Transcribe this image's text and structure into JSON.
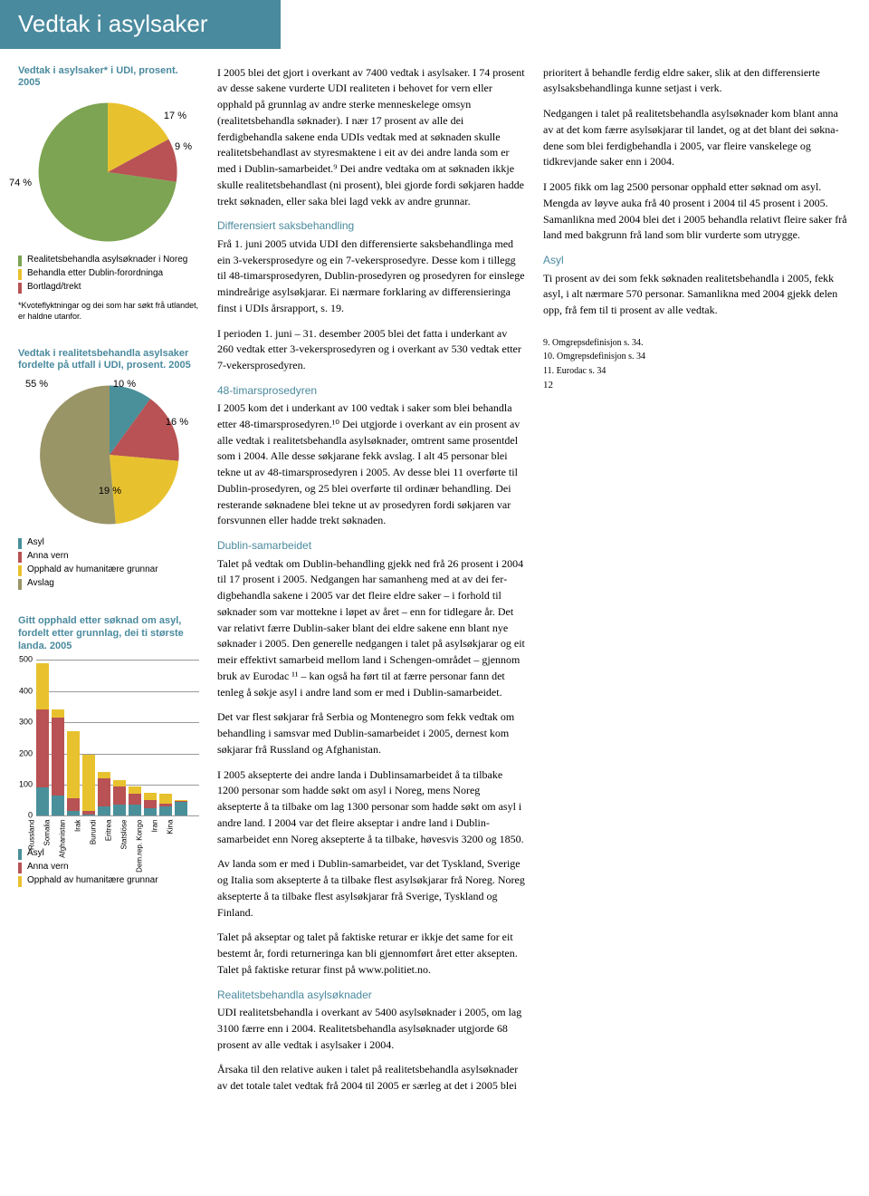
{
  "header": {
    "title": "Vedtak i asylsaker"
  },
  "chart1": {
    "title": "Vedtak i asylsaker* i UDI, prosent. 2005",
    "labels": {
      "p74": "74 %",
      "p17": "17 %",
      "p9": "9 %"
    },
    "colors": {
      "green": "#7da452",
      "yellow": "#e8c22e",
      "red": "#b85254"
    },
    "legend": [
      {
        "color": "#7da452",
        "text": "Realitetsbehandla asylsøknader i Noreg"
      },
      {
        "color": "#e8c22e",
        "text": "Behandla etter Dublin-forordninga"
      },
      {
        "color": "#b85254",
        "text": "Bortlagd/trekt"
      }
    ],
    "footnote": "*Kvoteflyktningar og dei som har søkt frå utlandet, er haldne utanfor."
  },
  "chart2": {
    "title": "Vedtak i realitetsbehandla asylsaker fordelte på utfall i UDI, prosent. 2005",
    "labels": {
      "p55": "55 %",
      "p10": "10 %",
      "p16": "16 %",
      "p19": "19 %"
    },
    "colors": {
      "teal": "#49909a",
      "red": "#b85254",
      "yellow": "#e8c22e",
      "olive": "#9a9567"
    },
    "legend": [
      {
        "color": "#49909a",
        "text": "Asyl"
      },
      {
        "color": "#b85254",
        "text": "Anna vern"
      },
      {
        "color": "#e8c22e",
        "text": "Opphald av humanitære grunnar"
      },
      {
        "color": "#9a9567",
        "text": "Avslag"
      }
    ]
  },
  "chart3": {
    "title": "Gitt opphald etter søknad om asyl, fordelt etter grunnlag, dei ti største landa. 2005",
    "ymax": 500,
    "ytick": 100,
    "yticks": [
      "0",
      "100",
      "200",
      "300",
      "400",
      "500"
    ],
    "colors": {
      "asyl": "#49909a",
      "anna": "#b85254",
      "human": "#e8c22e"
    },
    "bars": [
      {
        "label": "Russland",
        "asyl": 90,
        "anna": 250,
        "human": 150
      },
      {
        "label": "Somalia",
        "asyl": 65,
        "anna": 250,
        "human": 25
      },
      {
        "label": "Afghanistan",
        "asyl": 15,
        "anna": 40,
        "human": 215
      },
      {
        "label": "Irak",
        "asyl": 5,
        "anna": 10,
        "human": 180
      },
      {
        "label": "Burundi",
        "asyl": 30,
        "anna": 90,
        "human": 20
      },
      {
        "label": "Eritrea",
        "asyl": 35,
        "anna": 60,
        "human": 20
      },
      {
        "label": "Statslöse",
        "asyl": 35,
        "anna": 35,
        "human": 25
      },
      {
        "label": "Dem.rep. Kongo",
        "asyl": 25,
        "anna": 25,
        "human": 25
      },
      {
        "label": "Iran",
        "asyl": 30,
        "anna": 10,
        "human": 30
      },
      {
        "label": "Kina",
        "asyl": 45,
        "anna": 2,
        "human": 3
      }
    ],
    "legend": [
      {
        "color": "#49909a",
        "text": "Asyl"
      },
      {
        "color": "#b85254",
        "text": "Anna vern"
      },
      {
        "color": "#e8c22e",
        "text": "Opphald av humanitære grunnar"
      }
    ]
  },
  "body": {
    "p1": "I 2005 blei det gjort i overkant av 7400 vedtak i asylsaker. I 74 prosent av desse sakene vurderte UDI realiteten i behovet for vern eller opphald på grunnlag av andre sterke menneskelege omsyn (realitetsbehandla søknader). I nær 17 prosent av alle dei ferdigbehandla sakene enda UDIs vedtak med at søknaden skulle realitets­behandlast av styresmaktene i eit av dei andre landa som er med i Dublin-samarbeidet.⁹ Dei andre vedtaka om at søknaden ikkje skulle realitetsbehandlast (ni prosent), blei gjorde fordi søkjaren hadde trekt søknaden, eller saka blei lagd vekk av andre grunnar.",
    "h1": "Differensiert saksbehandling",
    "p2": "Frå 1. juni 2005 utvida UDI den differensierte saksbehandlinga med ein 3-vekersprosedyre og ein 7-vekersprosedyre. Desse kom i tillegg til 48-timarsprosedyren, Dublin-prosedyren og prosedyren for einslege mindreårige asyl­søkjarar. Ei nærmare forklaring av differensie­ringa finst i UDIs årsrapport, s. 19.",
    "p3": "I perioden 1. juni – 31. desember 2005 blei det fatta i underkant av 260 vedtak etter 3-vekers­prosedyren og i overkant av 530 vedtak etter 7-vekersprosedyren.",
    "h2": "48-timarsprosedyren",
    "p4": "I 2005 kom det i underkant av 100 vedtak i saker som blei behandla etter 48-timarsprose­dyren.¹⁰ Dei utgjorde i overkant av ein prosent av alle vedtak i realitetsbehandla asylsøknader, omtrent same prosentdel som i 2004. Alle desse søkjarane fekk avslag. I alt 45 personar blei tekne ut av 48-timarsprosedyren i 2005. Av desse blei 11 overførte til Dublin-prose­dyren, og 25 blei overførte til ordinær behand­ling. Dei resterande søknadene blei tekne ut av prosedyren fordi søkjaren var forsvunnen eller hadde trekt søknaden.",
    "h3": "Dublin-samarbeidet",
    "p5": "Talet på vedtak om Dublin-behandling gjekk ned frå 26 prosent i 2004 til 17 prosent i 2005. Nedgangen har samanheng med at av dei fer­digbehandla sakene i 2005 var det fleire eldre saker – i forhold til søknader som var mot­tekne i løpet av året – enn for tidlegare år. Det var relativt færre Dublin-saker blant dei eldre sakene enn blant nye søknader i 2005. Den generelle nedgangen i talet på asylsøkjarar og eit meir effektivt samarbeid mellom land i Schengen-området – gjennom bruk av Euro­dac ¹¹ – kan også ha ført til at færre personar fann det tenleg å søkje asyl i andre land som er med i Dublin-samarbeidet.",
    "p6": "Det var flest søkjarar frå Serbia og Montenegro som fekk vedtak om behandling i samsvar med Dublin-samarbeidet i 2005, dernest kom søkjarar frå Russland og Afghanistan.",
    "p7": "I 2005 aksepterte dei andre landa i Dublin­samarbeidet å ta tilbake 1200 personar som hadde søkt om asyl i Noreg, mens Noreg aksepterte å ta tilbake om lag 1300 personar som hadde søkt om asyl i andre land. I 2004 var det fleire akseptar i andre land i Dublin­samarbeidet enn Noreg aksepterte å ta tilbake, høvesvis 3200 og 1850.",
    "p8": "Av landa som er med i Dublin-samarbeidet, var det Tyskland, Sverige og Italia som aksepterte å ta tilbake flest asylsøkjarar frå Noreg. Noreg ak­septerte å ta tilbake flest asylsøkjarar frå Sverige, Tyskland og Finland.",
    "p9": "Talet på akseptar og talet på faktiske returar er ikkje det same for eit bestemt år, fordi returne­ringa kan bli gjennomført året etter aksepten. Talet på faktiske returar finst på www.politiet.no.",
    "h4": "Realitetsbehandla asylsøknader",
    "p10": "UDI realitetsbehandla i overkant av 5400 asylsøknader i 2005, om lag 3100 færre enn i 2004. Realitetsbehandla asylsøknader utgjorde 68 prosent av alle vedtak i asylsaker i 2004.",
    "p11": "Årsaka til den relative auken i talet på reali­tetsbehandla asylsøknader av det totale talet vedtak frå 2004 til 2005 er særleg at det i 2005 blei prioritert å behandle ferdig eldre saker, slik at den differensierte asylsaksbehandlinga kunne setjast i verk.",
    "p12": "Nedgangen i talet på realitetsbehandla asyl­søknader kom blant anna av at det kom færre asylsøkjarar til landet, og at det blant dei søkna­dene som blei ferdigbehandla i 2005, var fleire vanskelege og tidkrevjande saker enn i 2004.",
    "p13": "I 2005 fikk om lag 2500 personar opphald etter søknad om asyl. Mengda av løyve auka frå 40 prosent i 2004 til 45 prosent i 2005. Saman­likna med 2004 blei det i 2005 behandla relativt fleire saker frå land med bakgrunn frå land som blir vurderte som utrygge.",
    "h5": "Asyl",
    "p14": "Ti prosent av dei som fekk søknaden realitets­behandla i 2005, fekk asyl, i alt nærmare 570 personar. Samanlikna med 2004 gjekk delen opp, frå fem til ti prosent av alle vedtak."
  },
  "footnotes": {
    "f9": "9. Omgrepsdefinisjon s. 34.",
    "f10": "10. Omgrepsdefinisjon s. 34",
    "f11": "11. Eurodac s. 34"
  },
  "pagenum": "12"
}
